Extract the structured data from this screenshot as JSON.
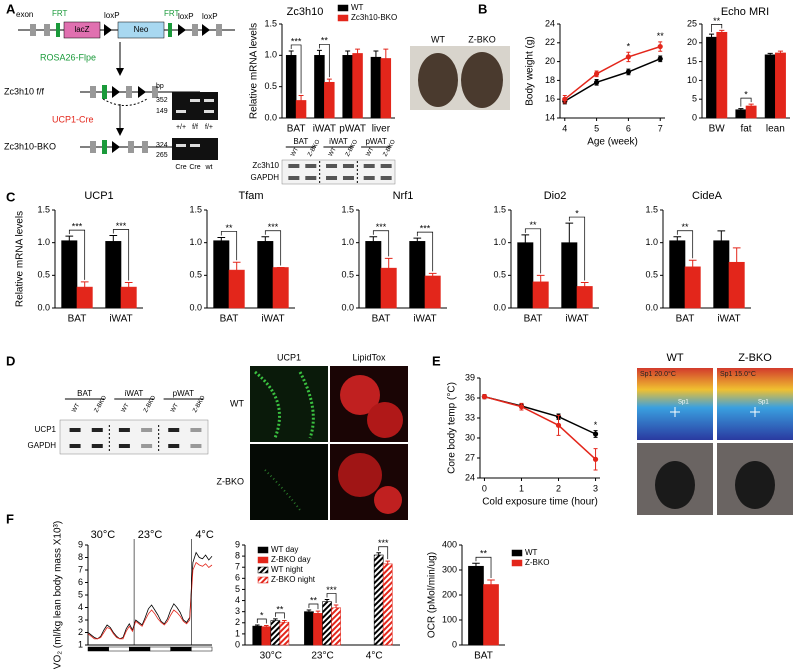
{
  "panel_labels": [
    "A",
    "B",
    "C",
    "D",
    "E",
    "F"
  ],
  "construct": {
    "labels": [
      "exon",
      "FRT",
      "lacZ",
      "loxP",
      "Neo",
      "FRT",
      "loxP",
      "loxP"
    ],
    "steps": [
      "ROSA26-Flpe",
      "Zc3h10 f/f",
      "UCP1-Cre",
      "Zc3h10-BKO"
    ]
  },
  "gel": {
    "unit": "bp",
    "top_sizes": [
      "352",
      "149"
    ],
    "top_lanes": [
      "+/+",
      "f/f",
      "f/+"
    ],
    "bottom_sizes": [
      "324",
      "265"
    ],
    "bottom_lanes": [
      "Cre",
      "Cre",
      "wt"
    ]
  },
  "blot_A": {
    "tissues": [
      "BAT",
      "iWAT",
      "pWAT"
    ],
    "lanes": [
      "WT",
      "Z-BKO"
    ],
    "proteins": [
      "Zc3h10",
      "GAPDH"
    ]
  },
  "photo_B": [
    "WT",
    "Z-BKO"
  ],
  "blot_D": {
    "tissues": [
      "BAT",
      "iWAT",
      "pWAT"
    ],
    "lanes": [
      "WT",
      "Z-BKO"
    ],
    "proteins": [
      "UCP1",
      "GAPDH"
    ]
  },
  "micrographs": {
    "stains": [
      "UCP1",
      "LipidTox"
    ],
    "rows": [
      "WT",
      "Z-BKO"
    ]
  },
  "thermal": {
    "genotypes": [
      "WT",
      "Z-BKO"
    ],
    "readings": [
      "Sp1 20.0°C",
      "Sp1 15.0°C"
    ],
    "spot": "Sp1"
  },
  "chart_data": [
    {
      "type": "bar",
      "title": "Zc3h10",
      "ylabel": "Relative mRNA levels",
      "categories": [
        "BAT",
        "iWAT",
        "pWAT",
        "liver"
      ],
      "series": [
        {
          "name": "WT",
          "color": "#000000",
          "values": [
            1.0,
            1.0,
            1.0,
            0.97
          ],
          "errors": [
            0.07,
            0.08,
            0.07,
            0.1
          ]
        },
        {
          "name": "Zc3h10-BKO",
          "color": "#e3261b",
          "values": [
            0.28,
            0.57,
            1.03,
            0.95
          ],
          "errors": [
            0.08,
            0.05,
            0.07,
            0.15
          ]
        }
      ],
      "ylim": [
        0,
        1.5
      ],
      "yticks": [
        {
          "value": 0,
          "label": "0.0"
        },
        0.5,
        {
          "value": 1,
          "label": "1.0"
        },
        1.5
      ],
      "annotations": [
        "***",
        "**"
      ]
    },
    {
      "type": "line",
      "ylabel": "Body weight (g)",
      "xlabel": "Age (week)",
      "x": [
        4,
        5,
        6,
        7
      ],
      "series": [
        {
          "color": "#000000",
          "values": [
            15.8,
            17.8,
            18.9,
            20.3
          ],
          "errors": [
            0.3,
            0.3,
            0.3,
            0.3
          ]
        },
        {
          "color": "#e3261b",
          "values": [
            16.0,
            18.7,
            20.5,
            21.6
          ],
          "errors": [
            0.4,
            0.3,
            0.5,
            0.5
          ]
        }
      ],
      "xlim": [
        3.85,
        7.15
      ],
      "xticks": [
        4,
        5,
        6,
        7
      ],
      "ylim": [
        14,
        24
      ],
      "yticks": [
        14,
        16,
        18,
        20,
        22,
        24
      ],
      "markers": true,
      "annotations": [
        "*",
        "**"
      ]
    },
    {
      "type": "bar",
      "title": "Echo MRI",
      "categories": [
        "BW",
        "fat",
        "lean"
      ],
      "series": [
        {
          "color": "#000000",
          "values": [
            21.5,
            2.2,
            16.8
          ],
          "errors": [
            0.8,
            0.3,
            0.4
          ]
        },
        {
          "color": "#e3261b",
          "values": [
            22.8,
            3.2,
            17.3
          ],
          "errors": [
            0.5,
            0.5,
            0.5
          ]
        }
      ],
      "ylim": [
        0,
        25
      ],
      "yticks": [
        0,
        5,
        10,
        15,
        20,
        25
      ],
      "annotations": [
        "**",
        "*"
      ]
    },
    {
      "type": "bar",
      "title": "UCP1",
      "ylabel": "Relative mRNA levels",
      "categories": [
        "BAT",
        "iWAT"
      ],
      "series": [
        {
          "color": "#000000",
          "values": [
            1.03,
            1.02
          ],
          "errors": [
            0.07,
            0.09
          ]
        },
        {
          "color": "#e3261b",
          "values": [
            0.32,
            0.32
          ],
          "errors": [
            0.08,
            0.07
          ]
        }
      ],
      "ylim": [
        0,
        1.5
      ],
      "yticks": [
        {
          "value": 0,
          "label": "0.0"
        },
        0.5,
        {
          "value": 1,
          "label": "1.0"
        },
        1.5
      ],
      "annotations": [
        "***",
        "***"
      ]
    },
    {
      "type": "bar",
      "title": "Tfam",
      "categories": [
        "BAT",
        "iWAT"
      ],
      "series": [
        {
          "color": "#000000",
          "values": [
            1.03,
            1.02
          ],
          "errors": [
            0.05,
            0.07
          ]
        },
        {
          "color": "#e3261b",
          "values": [
            0.58,
            0.62
          ],
          "errors": [
            0.12,
            0.0
          ]
        }
      ],
      "ylim": [
        0,
        1.5
      ],
      "yticks": [
        {
          "value": 0,
          "label": "0.0"
        },
        0.5,
        {
          "value": 1,
          "label": "1.0"
        },
        1.5
      ],
      "annotations": [
        "**",
        "***"
      ]
    },
    {
      "type": "bar",
      "title": "Nrf1",
      "categories": [
        "BAT",
        "iWAT"
      ],
      "series": [
        {
          "color": "#000000",
          "values": [
            1.02,
            1.02
          ],
          "errors": [
            0.07,
            0.05
          ]
        },
        {
          "color": "#e3261b",
          "values": [
            0.61,
            0.49
          ],
          "errors": [
            0.15,
            0.04
          ]
        }
      ],
      "ylim": [
        0,
        1.5
      ],
      "yticks": [
        {
          "value": 0,
          "label": "0.0"
        },
        0.5,
        {
          "value": 1,
          "label": "1.0"
        },
        1.5
      ],
      "annotations": [
        "***",
        "***"
      ]
    },
    {
      "type": "bar",
      "title": "Dio2",
      "categories": [
        "BAT",
        "iWAT"
      ],
      "series": [
        {
          "color": "#000000",
          "values": [
            1.0,
            1.0
          ],
          "errors": [
            0.12,
            0.3
          ]
        },
        {
          "color": "#e3261b",
          "values": [
            0.4,
            0.33
          ],
          "errors": [
            0.1,
            0.06
          ]
        }
      ],
      "ylim": [
        0,
        1.5
      ],
      "yticks": [
        {
          "value": 0,
          "label": "0.0"
        },
        0.5,
        {
          "value": 1,
          "label": "1.0"
        },
        1.5
      ],
      "annotations": [
        "**",
        "*"
      ]
    },
    {
      "type": "bar",
      "title": "CideA",
      "categories": [
        "BAT",
        "iWAT"
      ],
      "series": [
        {
          "color": "#000000",
          "values": [
            1.03,
            1.03
          ],
          "errors": [
            0.06,
            0.15
          ]
        },
        {
          "color": "#e3261b",
          "values": [
            0.63,
            0.7
          ],
          "errors": [
            0.1,
            0.22
          ]
        }
      ],
      "ylim": [
        0,
        1.5
      ],
      "yticks": [
        {
          "value": 0,
          "label": "0.0"
        },
        0.5,
        {
          "value": 1,
          "label": "1.0"
        },
        1.5
      ],
      "annotations": [
        "**"
      ]
    },
    {
      "type": "line",
      "ylabel": "Core body temp (°C)",
      "xlabel": "Cold exposure time (hour)",
      "x": [
        0,
        1,
        2,
        3
      ],
      "series": [
        {
          "color": "#000000",
          "values": [
            36.2,
            34.8,
            33.2,
            30.6
          ],
          "errors": [
            0.3,
            0.3,
            0.4,
            0.5
          ]
        },
        {
          "color": "#e3261b",
          "values": [
            36.2,
            34.7,
            31.9,
            26.8
          ],
          "errors": [
            0.3,
            0.5,
            1.5,
            1.6
          ]
        }
      ],
      "xlim": [
        -0.12,
        3.12
      ],
      "xticks": [
        0,
        1,
        2,
        3
      ],
      "ylim": [
        24,
        39
      ],
      "yticks": [
        24,
        27,
        30,
        33,
        36,
        39
      ],
      "markers": true,
      "annotations": [
        "*"
      ]
    },
    {
      "type": "line",
      "ylabel": "VO₂ (ml/kg lean body mass X10³)",
      "series": [
        {
          "color": "#000000",
          "values": [
            2.0,
            1.8,
            1.6,
            1.5,
            1.7,
            2.2,
            2.6,
            2.4,
            2.0,
            1.7,
            1.5,
            1.6,
            2.3,
            2.7,
            2.2,
            3.0,
            2.8,
            2.6,
            3.2,
            3.9,
            4.2,
            3.8,
            3.4,
            2.9,
            2.7,
            3.1,
            3.8,
            4.3,
            4.0,
            3.6,
            3.0,
            2.8,
            3.2,
            7.6,
            8.4,
            8.0,
            7.9,
            8.2,
            7.8,
            8.1
          ]
        },
        {
          "color": "#e3261b",
          "values": [
            1.9,
            1.7,
            1.5,
            1.5,
            1.6,
            2.0,
            2.4,
            2.3,
            1.9,
            1.6,
            1.5,
            1.5,
            2.1,
            2.5,
            2.1,
            2.9,
            2.7,
            2.5,
            3.0,
            3.5,
            3.8,
            3.5,
            3.1,
            2.8,
            2.6,
            2.9,
            3.4,
            3.8,
            3.6,
            3.3,
            2.9,
            2.7,
            3.0,
            7.0,
            7.6,
            7.4,
            7.3,
            7.5,
            7.2,
            7.4
          ]
        }
      ],
      "ylim": [
        1,
        9
      ],
      "yticks": [
        1,
        2,
        3,
        4,
        5,
        6,
        7,
        8,
        9
      ],
      "annotations": [
        "30°C",
        "23°C",
        "4°C"
      ]
    },
    {
      "type": "bar",
      "categories": [
        "30°C",
        "23°C",
        "4°C"
      ],
      "series": [
        {
          "name": "WT day",
          "color": "#000000",
          "values": [
            1.7,
            3.0,
            null
          ],
          "errors": [
            0.1,
            0.15,
            null
          ]
        },
        {
          "name": "Z-BKO day",
          "color": "#e3261b",
          "values": [
            1.65,
            2.85,
            null
          ],
          "errors": [
            0.1,
            0.2,
            null
          ]
        },
        {
          "name": "WT night",
          "color": "#000000",
          "hatch": true,
          "values": [
            2.2,
            3.9,
            8.1
          ],
          "errors": [
            0.15,
            0.2,
            0.2
          ]
        },
        {
          "name": "Z-BKO night",
          "color": "#e3261b",
          "hatch": true,
          "values": [
            2.05,
            3.35,
            7.3
          ],
          "errors": [
            0.15,
            0.25,
            0.25
          ]
        }
      ],
      "ylim": [
        0,
        9
      ],
      "yticks": [
        0,
        1,
        2,
        3,
        4,
        5,
        6,
        7,
        8,
        9
      ],
      "annotations": [
        "*",
        "**",
        "**",
        "***",
        "***"
      ]
    },
    {
      "type": "bar",
      "ylabel": "OCR (pMol/min/ug)",
      "categories": [
        "BAT"
      ],
      "series": [
        {
          "name": "WT",
          "color": "#000000",
          "values": [
            315
          ],
          "errors": [
            12
          ]
        },
        {
          "name": "Z-BKO",
          "color": "#e3261b",
          "values": [
            242
          ],
          "errors": [
            18
          ]
        }
      ],
      "ylim": [
        0,
        400
      ],
      "yticks": [
        0,
        100,
        200,
        300,
        400
      ],
      "annotations": [
        "**"
      ]
    }
  ]
}
